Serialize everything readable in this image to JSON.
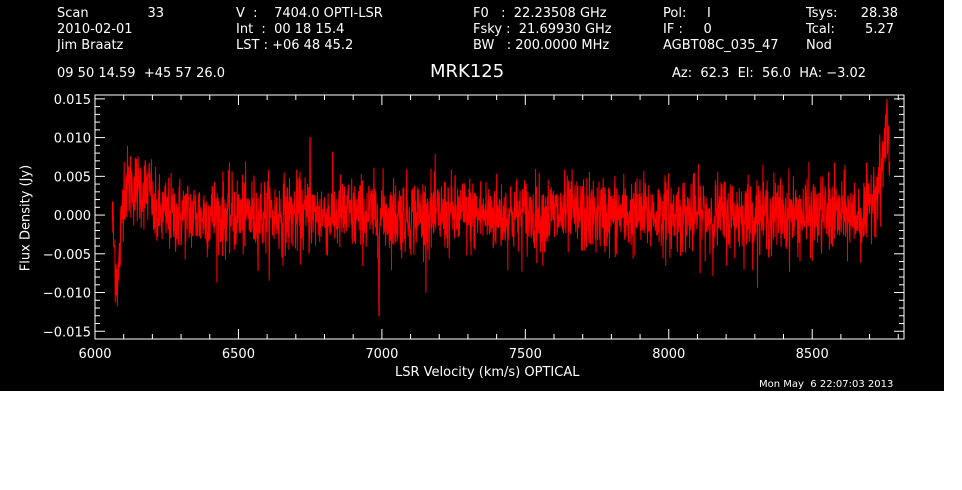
{
  "header": {
    "scan_label": "Scan",
    "scan_value": "33",
    "date": "2010-02-01",
    "observer": "Jim Braatz",
    "ra_dec": "09 50 14.59  +45 57 26.0",
    "velocity": "V  :    7404.0 OPTI-LSR",
    "int_time": "Int  :  00 18 15.4",
    "lst": "LST : +06 48 45.2",
    "f0": "F0   :  22.23508 GHz",
    "fsky": "Fsky :  21.69930 GHz",
    "bw": "BW   : 200.0000 MHz",
    "pol": "Pol:     I",
    "if": "IF :     0",
    "project": "AGBT08C_035_47",
    "tsys_label": "Tsys:",
    "tsys_value": "28.38",
    "tcal_label": "Tcal:",
    "tcal_value": "5.27",
    "mode": "Nod",
    "source": "MRK125",
    "az_el_ha": "Az:  62.3  El:  56.0  HA: −3.02"
  },
  "footer_timestamp": "Mon May  6 22:07:03 2013",
  "colors": {
    "background": "#000000",
    "axes": "#ffffff",
    "series": "#ff0000"
  },
  "chart_data": {
    "type": "line",
    "xlabel": "LSR Velocity (km/s) OPTICAL",
    "ylabel": "Flux Density (Jy)",
    "xlim": [
      6000,
      8820
    ],
    "ylim": [
      -0.016,
      0.0155
    ],
    "x_ticks": [
      6000,
      6500,
      7000,
      7500,
      8000,
      8500
    ],
    "x_tick_labels": [
      "6000",
      "6500",
      "7000",
      "7500",
      "8000",
      "8500"
    ],
    "y_ticks": [
      -0.015,
      -0.01,
      -0.005,
      0.0,
      0.005,
      0.01,
      0.015
    ],
    "y_tick_labels": [
      "−0.015",
      "−0.010",
      "−0.005",
      "0.000",
      "0.005",
      "0.010",
      "0.015"
    ],
    "grid": false,
    "series": [
      {
        "x_start": 6060,
        "x_end": 8770,
        "noise_rms": 0.0025,
        "values_sampled": [
          {
            "x": 6060,
            "y": 0.0
          },
          {
            "x": 6070,
            "y": -0.006
          },
          {
            "x": 6080,
            "y": -0.009
          },
          {
            "x": 6100,
            "y": 0.004
          },
          {
            "x": 6500,
            "y": 0.0
          },
          {
            "x": 6750,
            "y": 0.01
          },
          {
            "x": 6990,
            "y": -0.013
          },
          {
            "x": 7500,
            "y": 0.0
          },
          {
            "x": 8000,
            "y": 0.0
          },
          {
            "x": 8500,
            "y": 0.0
          },
          {
            "x": 8700,
            "y": 0.002
          },
          {
            "x": 8740,
            "y": 0.005
          },
          {
            "x": 8760,
            "y": 0.012
          },
          {
            "x": 8770,
            "y": 0.008
          }
        ]
      }
    ]
  }
}
